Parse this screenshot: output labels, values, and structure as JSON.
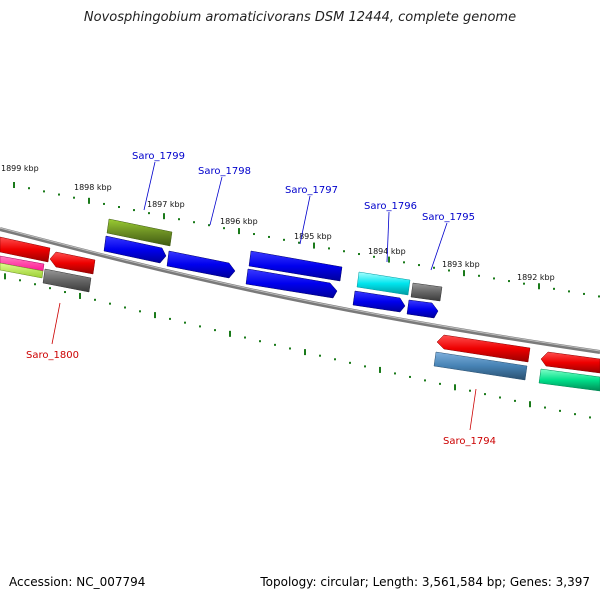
{
  "title": "Novosphingobium aromaticivorans DSM 12444, complete genome",
  "footer": {
    "accession": "Accession: NC_007794",
    "summary": "Topology: circular; Length: 3,561,584 bp; Genes: 3,397"
  },
  "ticks": [
    "1899 kbp",
    "1898 kbp",
    "1897 kbp",
    "1896 kbp",
    "1895 kbp",
    "1894 kbp",
    "1893 kbp",
    "1892 kbp"
  ],
  "gene_labels": [
    {
      "text": "Saro_1799",
      "color": "#0000cc"
    },
    {
      "text": "Saro_1798",
      "color": "#0000cc"
    },
    {
      "text": "Saro_1797",
      "color": "#0000cc"
    },
    {
      "text": "Saro_1796",
      "color": "#0000cc"
    },
    {
      "text": "Saro_1795",
      "color": "#0000cc"
    },
    {
      "text": "Saro_1800",
      "color": "#cc0000"
    },
    {
      "text": "Saro_1794",
      "color": "#cc0000"
    }
  ],
  "colors": {
    "backbone": "#8a8a8a",
    "tick": "#1a7a1a",
    "forward_gene": "#0000ee",
    "reverse_gene": "#ee0000",
    "olive": "#6b8e23",
    "cyan": "#00e5ee",
    "gray": "#666666",
    "steelblue": "#4682b4",
    "green": "#00e08a",
    "magenta": "#ff1493",
    "lime": "#adff2f"
  }
}
